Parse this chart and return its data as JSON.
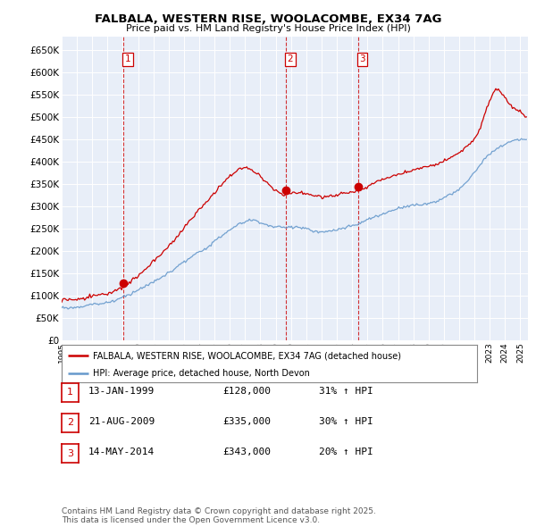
{
  "title": "FALBALA, WESTERN RISE, WOOLACOMBE, EX34 7AG",
  "subtitle": "Price paid vs. HM Land Registry's House Price Index (HPI)",
  "legend_line1": "FALBALA, WESTERN RISE, WOOLACOMBE, EX34 7AG (detached house)",
  "legend_line2": "HPI: Average price, detached house, North Devon",
  "line_color_red": "#cc0000",
  "line_color_blue": "#6699cc",
  "background_color": "#e8eef8",
  "grid_color": "#ffffff",
  "ylim_min": 0,
  "ylim_max": 680000,
  "yticks": [
    0,
    50000,
    100000,
    150000,
    200000,
    250000,
    300000,
    350000,
    400000,
    450000,
    500000,
    550000,
    600000,
    650000
  ],
  "ytick_labels": [
    "£0",
    "£50K",
    "£100K",
    "£150K",
    "£200K",
    "£250K",
    "£300K",
    "£350K",
    "£400K",
    "£450K",
    "£500K",
    "£550K",
    "£600K",
    "£650K"
  ],
  "transactions": [
    {
      "num": 1,
      "date": "13-JAN-1999",
      "price": 128000,
      "hpi_diff": "31% ↑ HPI",
      "x_year": 1999.04
    },
    {
      "num": 2,
      "date": "21-AUG-2009",
      "price": 335000,
      "hpi_diff": "30% ↑ HPI",
      "x_year": 2009.64
    },
    {
      "num": 3,
      "date": "14-MAY-2014",
      "price": 343000,
      "hpi_diff": "20% ↑ HPI",
      "x_year": 2014.37
    }
  ],
  "footer_text": "Contains HM Land Registry data © Crown copyright and database right 2025.\nThis data is licensed under the Open Government Licence v3.0.",
  "xmin": 1995.0,
  "xmax": 2025.5
}
